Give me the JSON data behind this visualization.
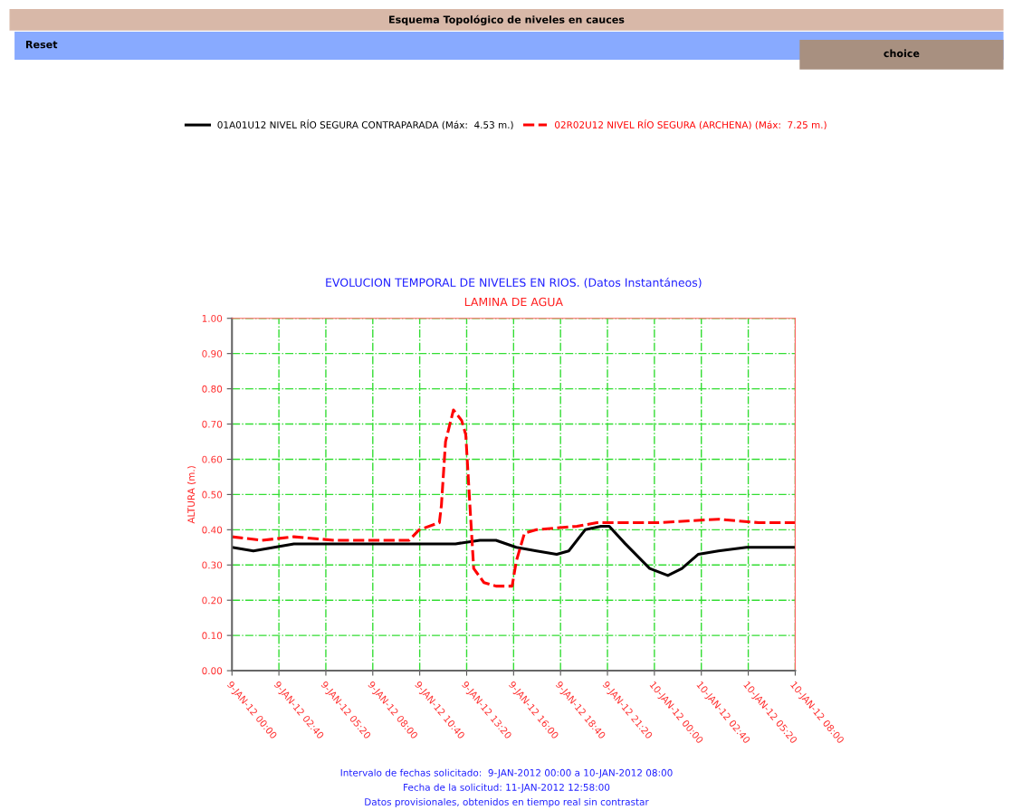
{
  "chart_data": {
    "type": "line",
    "title": "EVOLUCION TEMPORAL DE NIVELES EN RIOS. (Datos Instantáneos)",
    "subtitle": "LAMINA DE AGUA",
    "ylabel": "ALTURA (m.)",
    "annotations": [
      "Esquema Topológico de niveles en cauces",
      "Reset",
      "choice",
      "Intervalo de fechas solicitado:  9-JAN-2012 00:00 a 10-JAN-2012 08:00",
      "Fecha de la solicitud: 11-JAN-2012 12:58:00",
      "Datos provisionales, obtenidos en tiempo real sin contrastar"
    ],
    "series": [
      {
        "name": "01A01U12 NIVEL RÍO SEGURA CONTRAPARADA (Máx:  4.53 m.)",
        "color": "#000000",
        "line_style": "solid",
        "x": [
          "2012-01-09T00:00",
          "2012-01-09T01:13",
          "2012-01-09T03:31",
          "2012-01-09T05:49",
          "2012-01-09T08:07",
          "2012-01-09T10:25",
          "2012-01-09T12:42",
          "2012-01-09T14:05",
          "2012-01-09T15:00",
          "2012-01-09T16:09",
          "2012-01-09T17:18",
          "2012-01-09T18:27",
          "2012-01-09T19:08",
          "2012-01-09T20:04",
          "2012-01-09T20:58",
          "2012-01-09T21:26",
          "2012-01-09T22:21",
          "2012-01-09T23:44",
          "2012-01-10T00:46",
          "2012-01-10T01:34",
          "2012-01-10T02:29",
          "2012-01-10T03:38",
          "2012-01-10T05:14",
          "2012-01-10T06:37",
          "2012-01-10T08:00"
        ],
        "values": [
          0.35,
          0.34,
          0.36,
          0.36,
          0.36,
          0.36,
          0.36,
          0.37,
          0.37,
          0.35,
          0.34,
          0.33,
          0.34,
          0.4,
          0.41,
          0.41,
          0.36,
          0.29,
          0.27,
          0.29,
          0.33,
          0.34,
          0.35,
          0.35,
          0.35
        ]
      },
      {
        "name": "02R02U12 NIVEL RÍO SEGURA (ARCHENA) (Máx:  7.25 m.)",
        "color": "#ff0000",
        "line_style": "dashed",
        "x": [
          "2012-01-09T00:00",
          "2012-01-09T01:41",
          "2012-01-09T03:31",
          "2012-01-09T05:49",
          "2012-01-09T08:07",
          "2012-01-09T10:04",
          "2012-01-09T10:38",
          "2012-01-09T11:47",
          "2012-01-09T11:54",
          "2012-01-09T12:08",
          "2012-01-09T12:35",
          "2012-01-09T13:03",
          "2012-01-09T13:17",
          "2012-01-09T13:31",
          "2012-01-09T13:44",
          "2012-01-09T14:19",
          "2012-01-09T15:00",
          "2012-01-09T15:55",
          "2012-01-09T16:09",
          "2012-01-09T16:37",
          "2012-01-09T17:18",
          "2012-01-09T19:36",
          "2012-01-09T20:44",
          "2012-01-10T00:11",
          "2012-01-10T03:38",
          "2012-01-10T05:56",
          "2012-01-10T08:00"
        ],
        "values": [
          0.38,
          0.37,
          0.38,
          0.37,
          0.37,
          0.37,
          0.4,
          0.42,
          0.47,
          0.65,
          0.74,
          0.71,
          0.67,
          0.47,
          0.29,
          0.25,
          0.24,
          0.24,
          0.31,
          0.39,
          0.4,
          0.41,
          0.42,
          0.42,
          0.43,
          0.42,
          0.42
        ]
      }
    ],
    "xlim": [
      "2012-01-09T00:00",
      "2012-01-10T08:00"
    ],
    "xticks": [
      {
        "value": "2012-01-09T00:00",
        "label": "9-JAN-12 00:00"
      },
      {
        "value": "2012-01-09T02:40",
        "label": "9-JAN-12 02:40"
      },
      {
        "value": "2012-01-09T05:20",
        "label": "9-JAN-12 05:20"
      },
      {
        "value": "2012-01-09T08:00",
        "label": "9-JAN-12 08:00"
      },
      {
        "value": "2012-01-09T10:40",
        "label": "9-JAN-12 10:40"
      },
      {
        "value": "2012-01-09T13:20",
        "label": "9-JAN-12 13:20"
      },
      {
        "value": "2012-01-09T16:00",
        "label": "9-JAN-12 16:00"
      },
      {
        "value": "2012-01-09T18:40",
        "label": "9-JAN-12 18:40"
      },
      {
        "value": "2012-01-09T21:20",
        "label": "9-JAN-12 21:20"
      },
      {
        "value": "2012-01-10T00:00",
        "label": "10-JAN-12 00:00"
      },
      {
        "value": "2012-01-10T02:40",
        "label": "10-JAN-12 02:40"
      },
      {
        "value": "2012-01-10T05:20",
        "label": "10-JAN-12 05:20"
      },
      {
        "value": "2012-01-10T08:00",
        "label": "10-JAN-12 08:00"
      }
    ],
    "ylim": [
      0,
      1
    ],
    "yticks": [
      {
        "value": 0,
        "label": "0.00"
      },
      {
        "value": 0.1,
        "label": "0.10"
      },
      {
        "value": 0.2,
        "label": "0.20"
      },
      {
        "value": 0.3,
        "label": "0.30"
      },
      {
        "value": 0.4,
        "label": "0.40"
      },
      {
        "value": 0.5,
        "label": "0.50"
      },
      {
        "value": 0.6,
        "label": "0.60"
      },
      {
        "value": 0.7,
        "label": "0.70"
      },
      {
        "value": 0.8,
        "label": "0.80"
      },
      {
        "value": 0.9,
        "label": "0.90"
      },
      {
        "value": 1,
        "label": "1.00"
      }
    ],
    "grid": true,
    "legend": "top"
  }
}
